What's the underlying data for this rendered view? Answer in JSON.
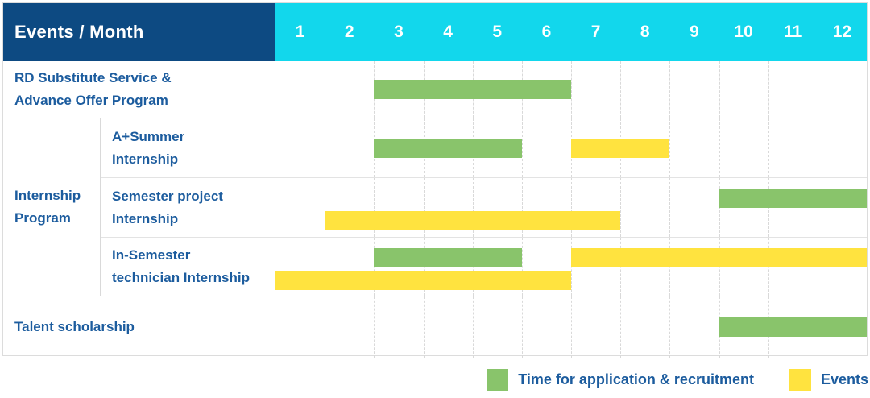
{
  "header": {
    "title": "Events / Month"
  },
  "colors": {
    "header_bg": "#0d4a82",
    "month_header_bg": "#12d7ec",
    "label_text": "#1c5c9e",
    "application_green": "#89c46b",
    "events_yellow": "#ffe33f",
    "grid_line": "#d9d9d9"
  },
  "legend": {
    "items": [
      {
        "label": "Time for application & recruitment",
        "series": 0
      },
      {
        "label": "Events",
        "series": 1
      }
    ]
  },
  "chart_data": {
    "type": "gantt",
    "x": {
      "label": "Month",
      "range": [
        1,
        12
      ],
      "ticks": [
        "1",
        "2",
        "3",
        "4",
        "5",
        "6",
        "7",
        "8",
        "9",
        "10",
        "11",
        "12"
      ]
    },
    "series": [
      {
        "name": "Time for application & recruitment",
        "color": "#89c46b"
      },
      {
        "name": "Events",
        "color": "#ffe33f"
      }
    ],
    "row_groups": [
      {
        "name": "Internship Program",
        "display_label": "Internship\nProgram",
        "rows": [
          1,
          2,
          3
        ]
      }
    ],
    "rows": [
      {
        "label": "RD Substitute Service & Advance Offer Program",
        "display_label": "RD Substitute Service &\nAdvance Offer Program",
        "group": "",
        "bars": [
          {
            "series": 0,
            "start_month": 3,
            "end_month": 6,
            "track": "center"
          }
        ]
      },
      {
        "label": "A+Summer Internship",
        "display_label": "A+Summer\nInternship",
        "group": "Internship Program",
        "bars": [
          {
            "series": 0,
            "start_month": 3,
            "end_month": 5,
            "track": "center"
          },
          {
            "series": 1,
            "start_month": 7,
            "end_month": 8,
            "track": "center"
          }
        ]
      },
      {
        "label": "Semester project Internship",
        "display_label": "Semester project\nInternship",
        "group": "Internship Program",
        "bars": [
          {
            "series": 0,
            "start_month": 10,
            "end_month": 12,
            "track": "top"
          },
          {
            "series": 1,
            "start_month": 2,
            "end_month": 7,
            "track": "bottom"
          }
        ]
      },
      {
        "label": "In-Semester technician Internship",
        "display_label": "In-Semester\ntechnician Internship",
        "group": "Internship Program",
        "bars": [
          {
            "series": 0,
            "start_month": 3,
            "end_month": 5,
            "track": "top"
          },
          {
            "series": 1,
            "start_month": 7,
            "end_month": 12,
            "track": "top"
          },
          {
            "series": 1,
            "start_month": 1,
            "end_month": 6,
            "track": "bottom"
          }
        ]
      },
      {
        "label": "Talent scholarship",
        "display_label": "Talent scholarship",
        "group": "",
        "bars": [
          {
            "series": 0,
            "start_month": 10,
            "end_month": 12,
            "track": "center"
          }
        ]
      }
    ]
  }
}
